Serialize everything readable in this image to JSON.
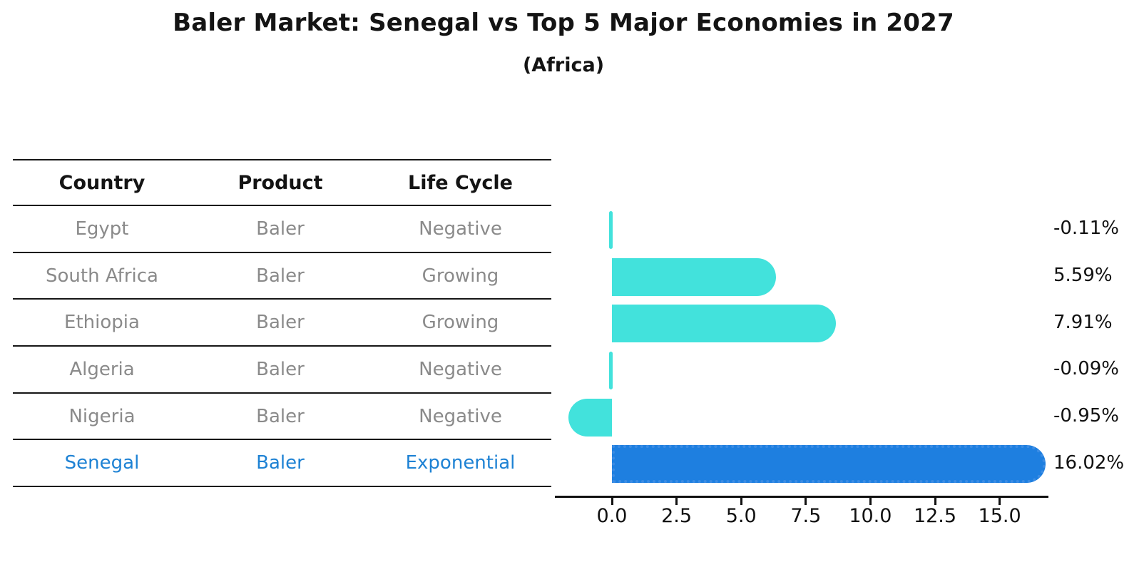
{
  "header": {
    "title": "Baler Market: Senegal vs Top 5 Major Economies in 2027",
    "subtitle": "(Africa)"
  },
  "table": {
    "columns": [
      "Country",
      "Product",
      "Life Cycle"
    ],
    "highlight_text_color": "#1E82D4",
    "rows": [
      {
        "country": "Egypt",
        "product": "Baler",
        "life_cycle": "Negative",
        "highlight": false
      },
      {
        "country": "South Africa",
        "product": "Baler",
        "life_cycle": "Growing",
        "highlight": false
      },
      {
        "country": "Ethiopia",
        "product": "Baler",
        "life_cycle": "Growing",
        "highlight": false
      },
      {
        "country": "Algeria",
        "product": "Baler",
        "life_cycle": "Negative",
        "highlight": false
      },
      {
        "country": "Nigeria",
        "product": "Baler",
        "life_cycle": "Negative",
        "highlight": false
      },
      {
        "country": "Senegal",
        "product": "Baler",
        "life_cycle": "Exponential",
        "highlight": true
      }
    ]
  },
  "chart_data": {
    "type": "bar",
    "orientation": "horizontal",
    "title": "Baler Market: Senegal vs Top 5 Major Economies in 2027",
    "subtitle": "(Africa)",
    "xlabel": "",
    "ylabel": "",
    "categories": [
      "Egypt",
      "South Africa",
      "Ethiopia",
      "Algeria",
      "Nigeria",
      "Senegal"
    ],
    "values": [
      -0.11,
      5.59,
      7.91,
      -0.09,
      -0.95,
      16.02
    ],
    "value_labels": [
      "-0.11%",
      "5.59%",
      "7.91%",
      "-0.09%",
      "-0.95%",
      "16.02%"
    ],
    "highlight_index": 5,
    "bar_color": "#42E2DC",
    "highlight_color": "#1E7FE0",
    "x_ticks": [
      0.0,
      2.5,
      5.0,
      7.5,
      10.0,
      12.5,
      15.0
    ],
    "x_tick_labels": [
      "0.0",
      "2.5",
      "5.0",
      "7.5",
      "10.0",
      "12.5",
      "15.0"
    ],
    "xlim": [
      -2.2,
      16.9
    ],
    "grid": false,
    "legend": null
  }
}
